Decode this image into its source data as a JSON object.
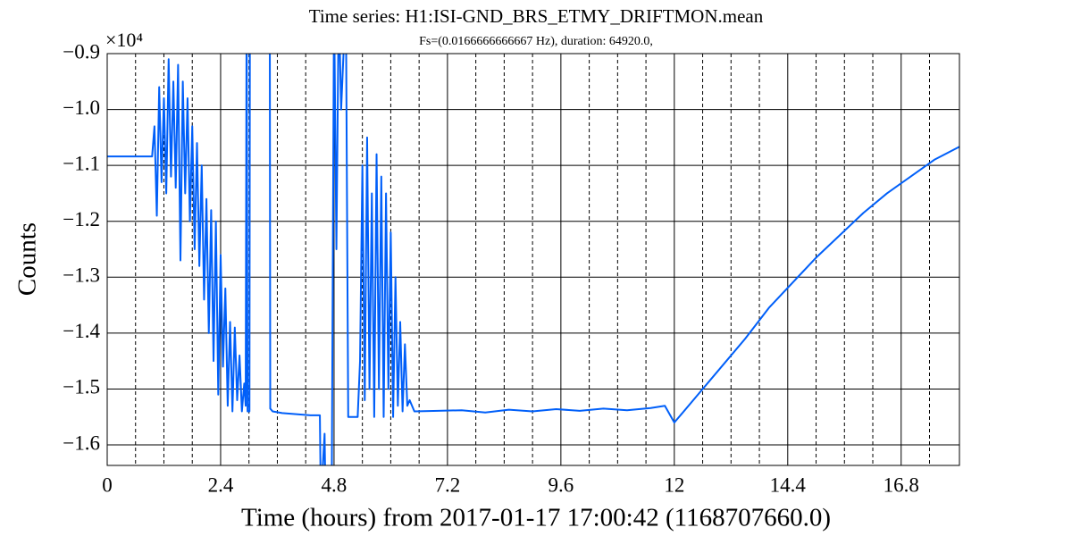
{
  "chart_data": {
    "type": "line",
    "title": "Time series: H1:ISI-GND_BRS_ETMY_DRIFTMON.mean",
    "subtitle": "Fs=(0.0166666666667 Hz), duration: 64920.0,",
    "x_label": "Time (hours) from 2017-01-17 17:00:42 (1168707660.0)",
    "y_label": "Counts",
    "y_offset_label": "×10⁴",
    "color": "#005ff9",
    "grid": true,
    "xlim": [
      0,
      18.0333
    ],
    "ylim": [
      -1.6367,
      -0.9
    ],
    "xticks": [
      0,
      2.4,
      4.8,
      7.2,
      9.6,
      12,
      14.4,
      16.8
    ],
    "xminor": [
      0.6,
      1.2,
      1.8,
      3.0,
      3.6,
      4.2,
      5.4,
      6.0,
      6.6,
      7.8,
      8.4,
      9.0,
      10.2,
      10.8,
      11.4,
      12.6,
      13.2,
      13.8,
      15.0,
      15.6,
      16.2,
      17.4
    ],
    "yticks": [
      {
        "value": -0.9,
        "label": "−0.9"
      },
      {
        "value": -1.0,
        "label": "−1.0"
      },
      {
        "value": -1.1,
        "label": "−1.1"
      },
      {
        "value": -1.2,
        "label": "−1.2"
      },
      {
        "value": -1.3,
        "label": "−1.3"
      },
      {
        "value": -1.4,
        "label": "−1.4"
      },
      {
        "value": -1.5,
        "label": "−1.5"
      },
      {
        "value": -1.6,
        "label": "−1.6"
      }
    ],
    "x": [
      0,
      0.95,
      1.0,
      1.05,
      1.1,
      1.15,
      1.2,
      1.25,
      1.3,
      1.35,
      1.4,
      1.45,
      1.5,
      1.55,
      1.6,
      1.65,
      1.7,
      1.75,
      1.8,
      1.85,
      1.9,
      1.95,
      2.0,
      2.05,
      2.1,
      2.15,
      2.2,
      2.25,
      2.3,
      2.35,
      2.4,
      2.45,
      2.5,
      2.55,
      2.6,
      2.65,
      2.7,
      2.75,
      2.8,
      2.85,
      2.9,
      2.93,
      2.95,
      2.97,
      3.01,
      3.02,
      3.44,
      3.45,
      3.5,
      3.7,
      4.0,
      4.3,
      4.5,
      4.52,
      4.6,
      4.62,
      4.75,
      4.8,
      4.85,
      4.9,
      4.95,
      5.05,
      5.1,
      5.3,
      5.35,
      5.4,
      5.45,
      5.5,
      5.55,
      5.6,
      5.65,
      5.7,
      5.75,
      5.8,
      5.85,
      5.9,
      5.95,
      6.0,
      6.05,
      6.1,
      6.15,
      6.2,
      6.25,
      6.3,
      6.35,
      6.4,
      6.5,
      7.0,
      7.5,
      8.0,
      8.5,
      9.0,
      9.5,
      10.0,
      10.5,
      11.0,
      11.5,
      11.8,
      12.0,
      12.5,
      13.0,
      13.5,
      14.0,
      14.5,
      15.0,
      15.5,
      16.0,
      16.5,
      17.0,
      17.5,
      18.0333
    ],
    "values": [
      -1.084,
      -1.084,
      -1.03,
      -1.19,
      -0.96,
      -1.13,
      -0.98,
      -1.15,
      -0.91,
      -1.12,
      -0.95,
      -1.14,
      -0.92,
      -1.27,
      -0.95,
      -1.15,
      -0.98,
      -1.2,
      -1.03,
      -1.25,
      -1.06,
      -1.28,
      -1.1,
      -1.34,
      -1.16,
      -1.4,
      -1.18,
      -1.45,
      -1.2,
      -1.51,
      -1.26,
      -1.46,
      -1.32,
      -1.53,
      -1.38,
      -1.54,
      -1.39,
      -1.52,
      -1.44,
      -1.54,
      -1.49,
      -1.53,
      -0.8,
      -1.54,
      -1.54,
      -0.8,
      -0.8,
      -1.535,
      -1.54,
      -1.543,
      -1.545,
      -1.547,
      -1.547,
      -1.7,
      -1.58,
      -1.7,
      -1.7,
      -0.8,
      -1.25,
      -0.8,
      -1.0,
      -0.8,
      -1.55,
      -1.55,
      -1.45,
      -1.1,
      -1.52,
      -1.05,
      -1.5,
      -1.15,
      -1.55,
      -1.08,
      -1.5,
      -1.12,
      -1.55,
      -1.15,
      -1.5,
      -1.22,
      -1.55,
      -1.3,
      -1.53,
      -1.38,
      -1.54,
      -1.42,
      -1.53,
      -1.52,
      -1.54,
      -1.539,
      -1.538,
      -1.542,
      -1.537,
      -1.54,
      -1.536,
      -1.539,
      -1.535,
      -1.538,
      -1.534,
      -1.53,
      -1.56,
      -1.51,
      -1.46,
      -1.41,
      -1.355,
      -1.31,
      -1.265,
      -1.225,
      -1.185,
      -1.15,
      -1.12,
      -1.09,
      -1.0667
    ]
  }
}
